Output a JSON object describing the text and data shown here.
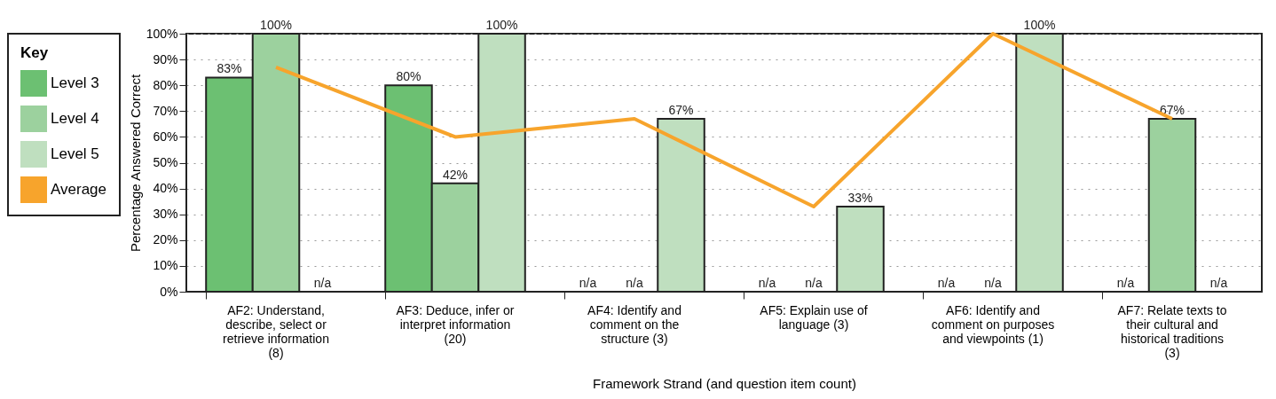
{
  "chart_data": {
    "type": "bar",
    "xlabel": "Framework Strand (and question item count)",
    "ylabel": "Percentage Answered Correct",
    "legend_title": "Key",
    "legend": "left",
    "grid": "y",
    "categories": [
      "AF2: Understand, describe, select or retrieve information (8)",
      "AF3: Deduce, infer or interpret information (20)",
      "AF4: Identify and comment on the structure (3)",
      "AF5: Explain use of language (3)",
      "AF6: Identify and comment on purposes and viewpoints (1)",
      "AF7: Relate texts to their cultural and historical traditions (3)"
    ],
    "ylim": [
      0,
      100
    ],
    "yticks": [
      {
        "value": 0,
        "label": "0%"
      },
      {
        "value": 10,
        "label": "10%"
      },
      {
        "value": 20,
        "label": "20%"
      },
      {
        "value": 30,
        "label": "30%"
      },
      {
        "value": 40,
        "label": "40%"
      },
      {
        "value": 50,
        "label": "50%"
      },
      {
        "value": 60,
        "label": "60%"
      },
      {
        "value": 70,
        "label": "70%"
      },
      {
        "value": 80,
        "label": "80%"
      },
      {
        "value": 90,
        "label": "90%"
      },
      {
        "value": 100,
        "label": "100%"
      }
    ],
    "series": [
      {
        "name": "Level 3",
        "color": "#6cc072",
        "values": [
          83,
          80,
          null,
          null,
          null,
          null
        ],
        "value_labels": [
          "83%",
          "80%",
          "n/a",
          "n/a",
          "n/a",
          "n/a"
        ]
      },
      {
        "name": "Level 4",
        "color": "#9cd19e",
        "values": [
          100,
          42,
          null,
          null,
          null,
          67
        ],
        "value_labels": [
          "100%",
          "42%",
          "n/a",
          "n/a",
          "n/a",
          "67%"
        ]
      },
      {
        "name": "Level 5",
        "color": "#bfdfbf",
        "values": [
          null,
          100,
          67,
          33,
          100,
          null
        ],
        "value_labels": [
          "n/a",
          "100%",
          "67%",
          "33%",
          "100%",
          "n/a"
        ]
      },
      {
        "name": "Average",
        "type": "line",
        "color": "#f7a42c",
        "values": [
          87,
          60,
          67,
          33,
          100,
          67
        ]
      }
    ]
  }
}
